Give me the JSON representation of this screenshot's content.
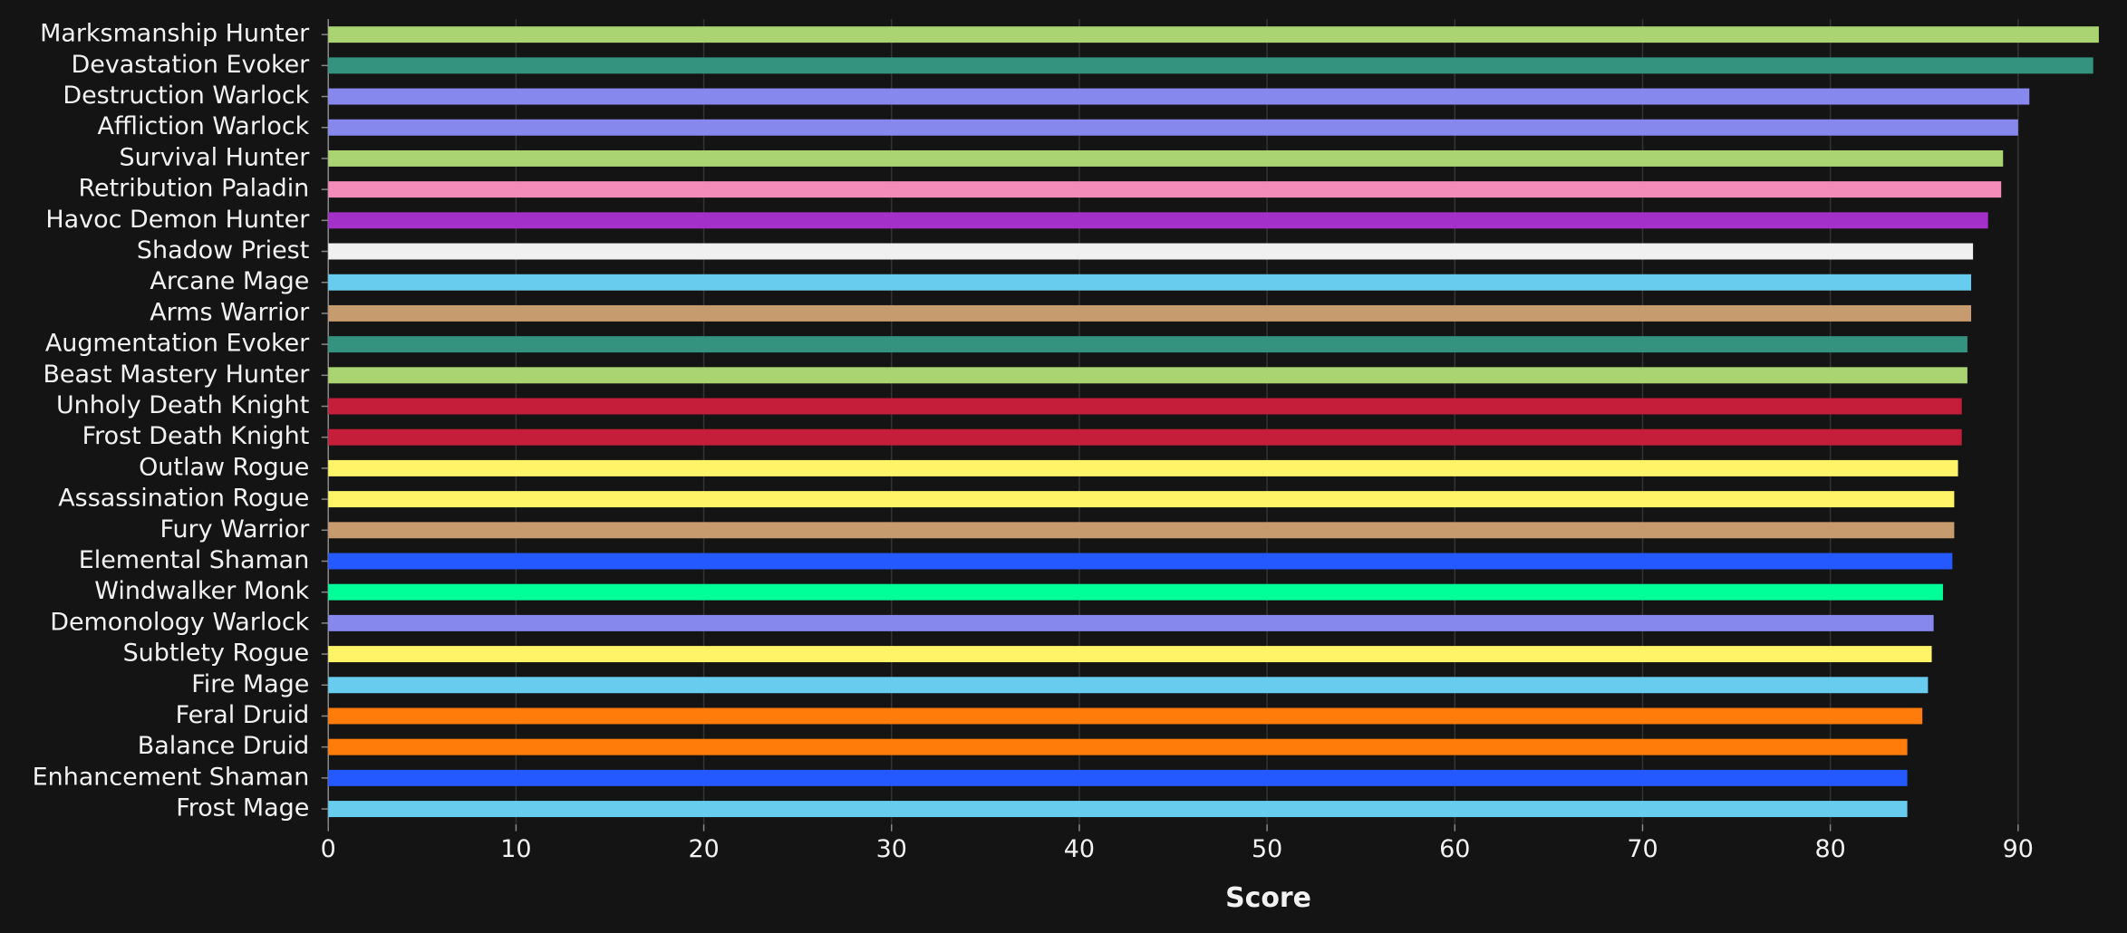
{
  "chart_data": {
    "type": "hbar",
    "x_label": "Score",
    "categories": [
      "Marksmanship Hunter",
      "Devastation Evoker",
      "Destruction Warlock",
      "Affliction Warlock",
      "Survival Hunter",
      "Retribution Paladin",
      "Havoc Demon Hunter",
      "Shadow Priest",
      "Arcane Mage",
      "Arms Warrior",
      "Augmentation Evoker",
      "Beast Mastery Hunter",
      "Unholy Death Knight",
      "Frost Death Knight",
      "Outlaw Rogue",
      "Assassination Rogue",
      "Fury Warrior",
      "Elemental Shaman",
      "Windwalker Monk",
      "Demonology Warlock",
      "Subtlety Rogue",
      "Fire Mage",
      "Feral Druid",
      "Balance Druid",
      "Enhancement Shaman",
      "Frost Mage"
    ],
    "values": [
      94.3,
      94.0,
      90.6,
      90.0,
      89.2,
      89.1,
      88.4,
      87.6,
      87.5,
      87.5,
      87.3,
      87.3,
      87.0,
      87.0,
      86.8,
      86.6,
      86.6,
      86.5,
      86.0,
      85.5,
      85.4,
      85.2,
      84.9,
      84.1,
      84.1,
      84.1
    ],
    "colors": [
      "#aad372",
      "#33937f",
      "#8788ee",
      "#8788ee",
      "#aad372",
      "#f48cba",
      "#a330c9",
      "#f0f0f0",
      "#68ccef",
      "#c69b6d",
      "#33937f",
      "#aad372",
      "#c41e3a",
      "#c41e3a",
      "#fff468",
      "#fff468",
      "#c69b6d",
      "#2359ff",
      "#00ff98",
      "#8788ee",
      "#fff468",
      "#68ccef",
      "#ff7c0a",
      "#ff7c0a",
      "#2359ff",
      "#68ccef"
    ],
    "xlim": [
      0,
      94.5
    ],
    "xticks": [
      0,
      10,
      20,
      30,
      40,
      50,
      60,
      70,
      80,
      90
    ],
    "grid": true
  }
}
